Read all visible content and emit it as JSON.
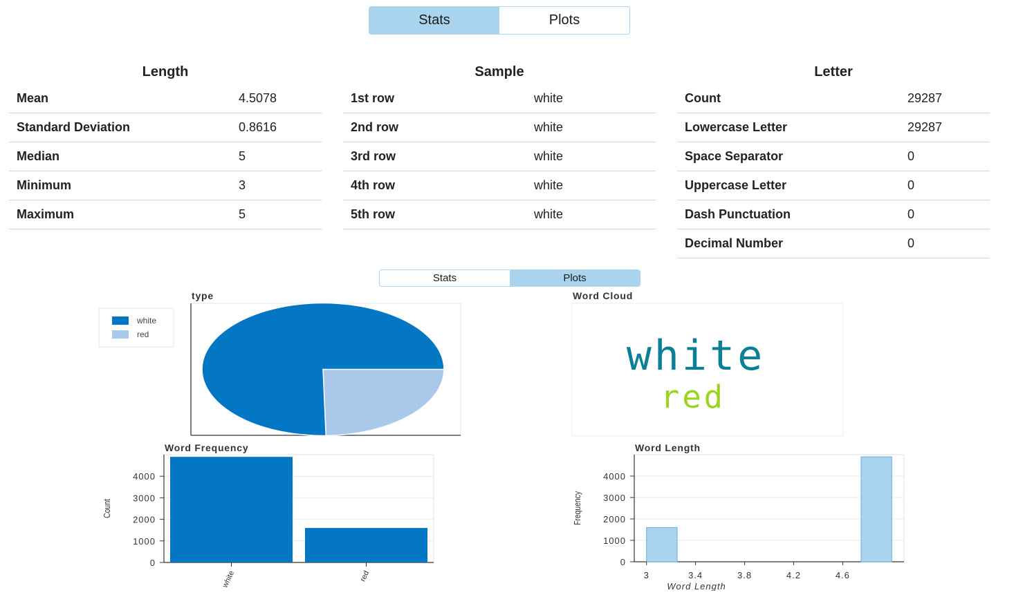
{
  "top_tabs": {
    "stats": "Stats",
    "plots": "Plots"
  },
  "bottom_tabs": {
    "stats": "Stats",
    "plots": "Plots"
  },
  "length": {
    "title": "Length",
    "rows": [
      {
        "label": "Mean",
        "value": "4.5078"
      },
      {
        "label": "Standard Deviation",
        "value": "0.8616"
      },
      {
        "label": "Median",
        "value": "5"
      },
      {
        "label": "Minimum",
        "value": "3"
      },
      {
        "label": "Maximum",
        "value": "5"
      }
    ]
  },
  "sample": {
    "title": "Sample",
    "rows": [
      {
        "label": "1st row",
        "value": "white"
      },
      {
        "label": "2nd row",
        "value": "white"
      },
      {
        "label": "3rd row",
        "value": "white"
      },
      {
        "label": "4th row",
        "value": "white"
      },
      {
        "label": "5th row",
        "value": "white"
      }
    ]
  },
  "letter": {
    "title": "Letter",
    "rows": [
      {
        "label": "Count",
        "value": "29287"
      },
      {
        "label": "Lowercase Letter",
        "value": "29287"
      },
      {
        "label": "Space Separator",
        "value": "0"
      },
      {
        "label": "Uppercase Letter",
        "value": "0"
      },
      {
        "label": "Dash Punctuation",
        "value": "0"
      },
      {
        "label": "Decimal Number",
        "value": "0"
      }
    ]
  },
  "colors": {
    "primary": "#0376c4",
    "secondary": "#aac8ea",
    "tab_active": "#aad4ed",
    "cloud_white": "#0a8097",
    "cloud_red": "#9ad41e"
  },
  "chart_data": [
    {
      "type": "pie",
      "title": "type",
      "categories": [
        "white",
        "red"
      ],
      "values": [
        4898,
        1599
      ],
      "colors": [
        "#0376c4",
        "#aac8ea"
      ],
      "legend": "top-left"
    },
    {
      "type": "wordcloud",
      "title": "Word Cloud",
      "words": [
        {
          "text": "white",
          "color": "#0a8097",
          "weight": 4898
        },
        {
          "text": "red",
          "color": "#9ad41e",
          "weight": 1599
        }
      ]
    },
    {
      "type": "bar",
      "title": "Word Frequency",
      "categories": [
        "white",
        "red"
      ],
      "values": [
        4898,
        1599
      ],
      "ylabel": "Count",
      "xlabel": "",
      "ylim": [
        0,
        5000
      ],
      "yticks": [
        0,
        1000,
        2000,
        3000,
        4000
      ],
      "grid": true,
      "color": "#0376c4"
    },
    {
      "type": "bar",
      "title": "Word Length",
      "bins": [
        {
          "x0": 3,
          "x1": 3.25,
          "value": 1599
        },
        {
          "x0": 3.25,
          "x1": 3.5,
          "value": 0
        },
        {
          "x0": 3.5,
          "x1": 3.75,
          "value": 0
        },
        {
          "x0": 3.75,
          "x1": 4.0,
          "value": 0
        },
        {
          "x0": 4.0,
          "x1": 4.25,
          "value": 0
        },
        {
          "x0": 4.25,
          "x1": 4.5,
          "value": 0
        },
        {
          "x0": 4.5,
          "x1": 4.75,
          "value": 0
        },
        {
          "x0": 4.75,
          "x1": 5.0,
          "value": 4898
        }
      ],
      "xlabel": "Word Length",
      "ylabel": "Frequency",
      "xlim": [
        2.9,
        5.1
      ],
      "xticks": [
        3,
        3.4,
        3.8,
        4.2,
        4.6
      ],
      "ylim": [
        0,
        5000
      ],
      "yticks": [
        0,
        1000,
        2000,
        3000,
        4000
      ],
      "grid": true,
      "color": "#aad4ed"
    }
  ]
}
